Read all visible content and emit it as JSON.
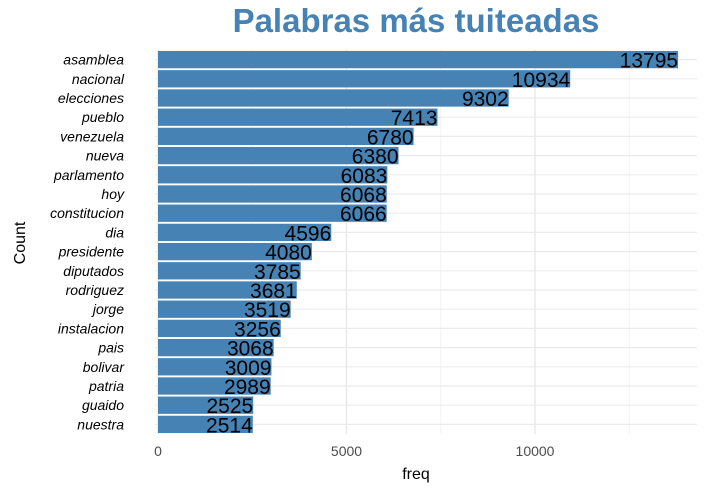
{
  "chart_data": {
    "type": "bar",
    "orientation": "horizontal",
    "title": "Palabras más tuiteadas",
    "xlabel": "freq",
    "ylabel": "Count",
    "categories": [
      "asamblea",
      "nacional",
      "elecciones",
      "pueblo",
      "venezuela",
      "nueva",
      "parlamento",
      "hoy",
      "constitucion",
      "dia",
      "presidente",
      "diputados",
      "rodriguez",
      "jorge",
      "instalacion",
      "pais",
      "bolivar",
      "patria",
      "guaido",
      "nuestra"
    ],
    "values": [
      13795,
      10934,
      9302,
      7413,
      6780,
      6380,
      6083,
      6068,
      6066,
      4596,
      4080,
      3785,
      3681,
      3519,
      3256,
      3068,
      3009,
      2989,
      2525,
      2514
    ],
    "data_labels": [
      "13795",
      "10934",
      "9302",
      "7413",
      "6780",
      "6380",
      "6083",
      "6068",
      "6066",
      "4596",
      "4080",
      "3785",
      "3681",
      "3519",
      "3256",
      "3068",
      "3009",
      "2989",
      "2525",
      "2514"
    ],
    "x_ticks": [
      0,
      5000,
      10000
    ],
    "x_tick_labels": [
      "0",
      "5000",
      "10000"
    ],
    "xlim": [
      0,
      14500
    ],
    "bar_color": "#4682B4",
    "title_color": "#4682B4",
    "grid": true
  }
}
